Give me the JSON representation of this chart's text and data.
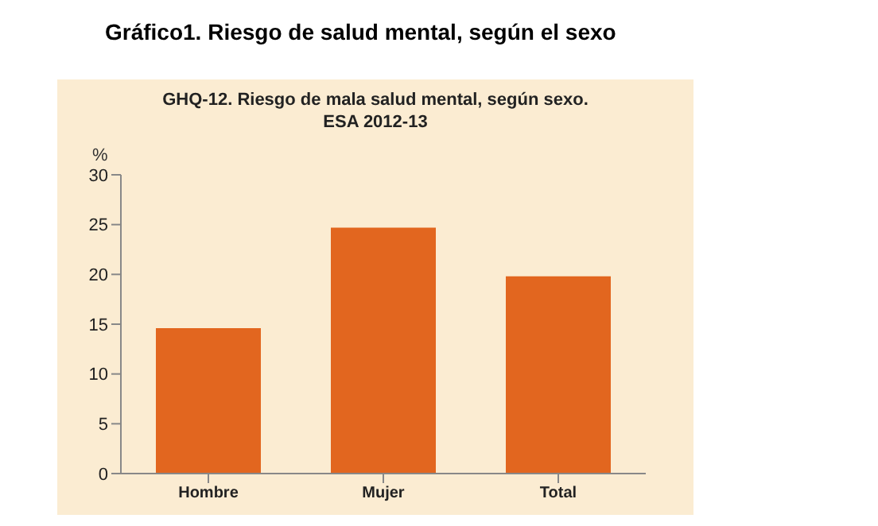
{
  "chart_data": {
    "type": "bar",
    "title": "Gráfico1. Riesgo de salud mental, según el sexo",
    "subtitle": "GHQ-12. Riesgo de mala salud mental, según sexo.\nESA 2012-13",
    "ylabel": "%",
    "categories": [
      "Hombre",
      "Mujer",
      "Total"
    ],
    "values": [
      14.6,
      24.7,
      19.8
    ],
    "color": "#e2661f",
    "ylim": [
      0,
      30
    ],
    "yticks": [
      0,
      5,
      10,
      15,
      20,
      25,
      30
    ],
    "grid": false,
    "legend": false
  }
}
